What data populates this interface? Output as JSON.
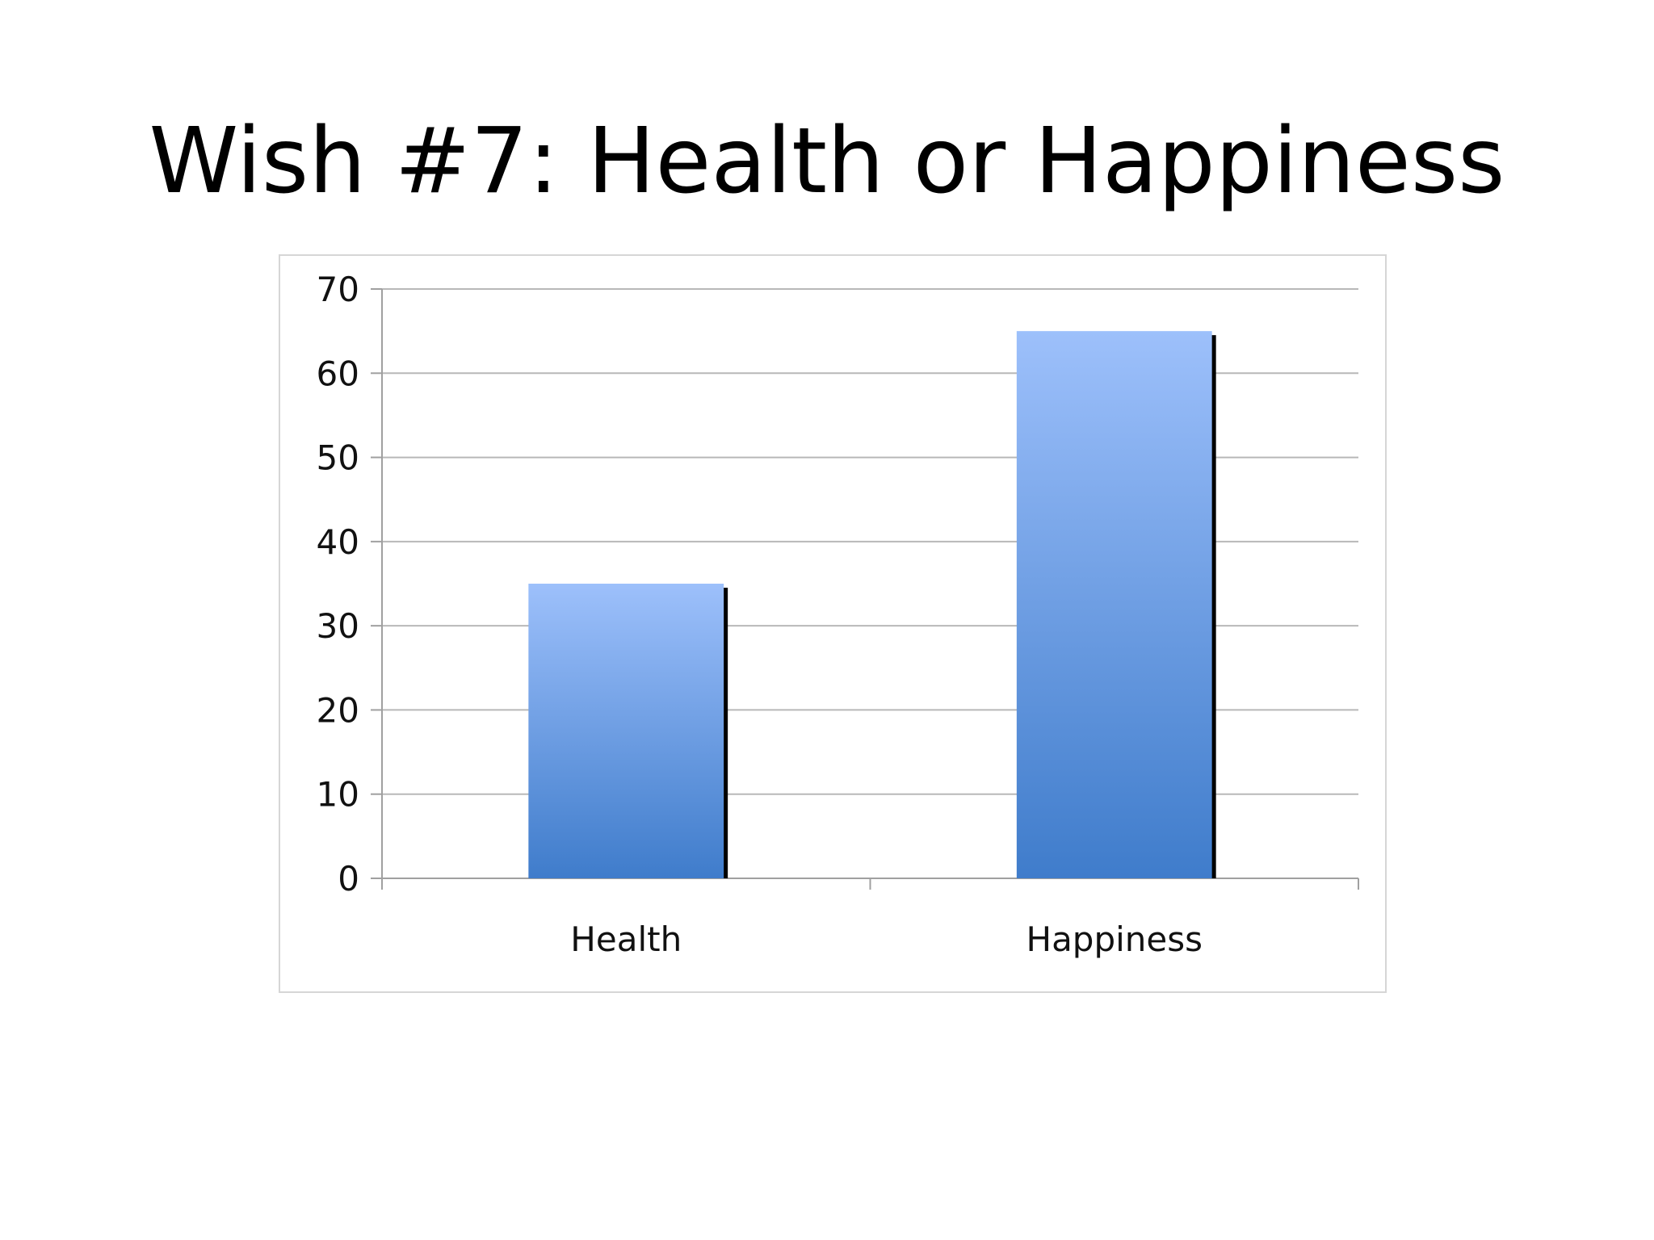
{
  "slide": {
    "title": "Wish #7: Health or Happiness"
  },
  "chart_data": {
    "type": "bar",
    "categories": [
      "Health",
      "Happiness"
    ],
    "values": [
      35,
      65
    ],
    "title": "",
    "xlabel": "",
    "ylabel": "",
    "ylim": [
      0,
      70
    ],
    "yticks": [
      0,
      10,
      20,
      30,
      40,
      50,
      60,
      70
    ],
    "grid": true,
    "legend": "none",
    "colors": {
      "bar_top": "#9dc0fb",
      "bar_bottom": "#3f7ccb",
      "bar_shadow": "#000000",
      "grid": "#b8b8b8",
      "axis": "#a0a0a0"
    }
  }
}
